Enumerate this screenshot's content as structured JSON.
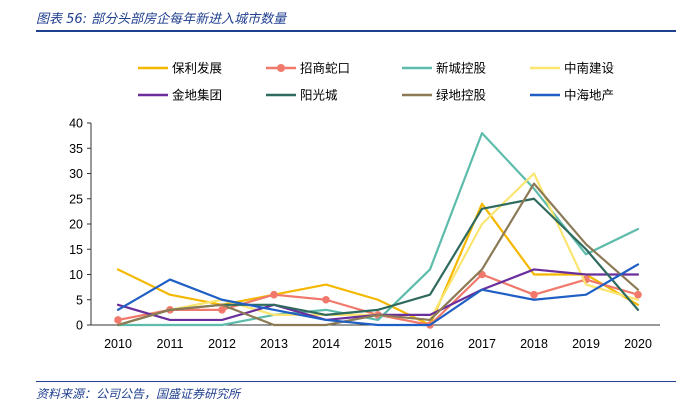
{
  "header": {
    "title": "图表 56:  部分头部房企每年新进入城市数量"
  },
  "footer": {
    "source": "资料来源：公司公告，国盛证券研究所"
  },
  "chart_data": {
    "type": "line",
    "title": "",
    "xlabel": "",
    "ylabel": "",
    "x": [
      "2010",
      "2011",
      "2012",
      "2013",
      "2014",
      "2015",
      "2016",
      "2017",
      "2018",
      "2019",
      "2020"
    ],
    "yticks": [
      "0",
      "5",
      "10",
      "15",
      "20",
      "25",
      "30",
      "35",
      "40"
    ],
    "ylim": [
      0,
      40
    ],
    "grid": false,
    "legend_position": "top",
    "series": [
      {
        "name": "保利发展",
        "color": "#f5b800",
        "marker": false,
        "values": [
          11,
          6,
          4,
          6,
          8,
          5,
          0,
          24,
          10,
          10,
          4
        ]
      },
      {
        "name": "招商蛇口",
        "color": "#f0796b",
        "marker": true,
        "values": [
          1,
          3,
          3,
          6,
          5,
          2,
          0,
          10,
          6,
          9,
          6
        ]
      },
      {
        "name": "新城控股",
        "color": "#5dbcab",
        "marker": false,
        "values": [
          0,
          0,
          0,
          2,
          3,
          1,
          11,
          38,
          27,
          14,
          19
        ]
      },
      {
        "name": "中南建设",
        "color": "#fbe571",
        "marker": false,
        "values": [
          0,
          3,
          5,
          2,
          2,
          2,
          1,
          20,
          30,
          8,
          5
        ]
      },
      {
        "name": "金地集团",
        "color": "#6a2f9c",
        "marker": false,
        "values": [
          4,
          1,
          1,
          4,
          1,
          2,
          2,
          7,
          11,
          10,
          10
        ]
      },
      {
        "name": "阳光城",
        "color": "#2e6b5e",
        "marker": false,
        "values": [
          0,
          3,
          4,
          4,
          2,
          3,
          6,
          23,
          25,
          15,
          3
        ]
      },
      {
        "name": "绿地控股",
        "color": "#8b7a55",
        "marker": false,
        "values": [
          0,
          3,
          4,
          0,
          0,
          2,
          1,
          11,
          28,
          16,
          7
        ]
      },
      {
        "name": "中海地产",
        "color": "#1f5fc4",
        "marker": false,
        "values": [
          3,
          9,
          5,
          3,
          1,
          0,
          0,
          7,
          5,
          6,
          12
        ]
      }
    ]
  }
}
